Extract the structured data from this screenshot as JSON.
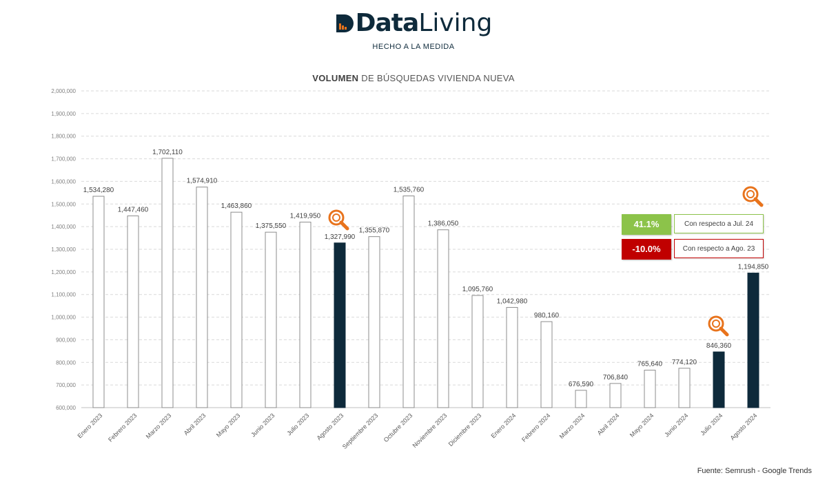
{
  "header": {
    "logo_bold": "Data",
    "logo_light": "Living",
    "tagline": "HECHO A LA MEDIDA"
  },
  "colors": {
    "brand_dark": "#0e2a3b",
    "highlight_bar": "#0e2a3b",
    "accent_orange": "#e8731c",
    "positive": "#8cc34a",
    "negative": "#c00000"
  },
  "chart_data": {
    "type": "bar",
    "title_bold": "VOLUMEN",
    "title_rest": "DE BÚSQUEDAS VIVIENDA NUEVA",
    "xlabel": "",
    "ylabel": "",
    "ylim": [
      600000,
      2000000
    ],
    "y_tick_step": 100000,
    "y_tick_labels": [
      "600,000",
      "700,000",
      "800,000",
      "900,000",
      "1,000,000",
      "1,100,000",
      "1,200,000",
      "1,300,000",
      "1,400,000",
      "1,500,000",
      "1,600,000",
      "1,700,000",
      "1,800,000",
      "1,900,000",
      "2,000,000"
    ],
    "grid": "horizontal-dashed",
    "categories": [
      "Enero 2023",
      "Febrero 2023",
      "Marzo 2023",
      "Abril 2023",
      "Mayo 2023",
      "Junio 2023",
      "Julio 2023",
      "Agosto 2023",
      "Septiembre 2023",
      "Octubre 2023",
      "Noviembre 2023",
      "Diciembre 2023",
      "Enero 2024",
      "Febrero 2024",
      "Marzo 2024",
      "Abril 2024",
      "Mayo 2024",
      "Junio 2024",
      "Julio 2024",
      "Agosto 2024"
    ],
    "values": [
      1534280,
      1447460,
      1702110,
      1574910,
      1463860,
      1375550,
      1419950,
      1327990,
      1355870,
      1535760,
      1386050,
      1095760,
      1042980,
      980160,
      676590,
      706840,
      765640,
      774120,
      846360,
      1194850
    ],
    "value_labels": [
      "1,534,280",
      "1,447,460",
      "1,702,110",
      "1,574,910",
      "1,463,860",
      "1,375,550",
      "1,419,950",
      "1,327,990",
      "1,355,870",
      "1,535,760",
      "1,386,050",
      "1,095,760",
      "1,042,980",
      "980,160",
      "676,590",
      "706,840",
      "765,640",
      "774,120",
      "846,360",
      "1,194,850"
    ],
    "highlighted": [
      "Agosto 2023",
      "Julio 2024",
      "Agosto 2024"
    ]
  },
  "kpis": [
    {
      "value": "41.1%",
      "label": "Con respecto a Jul. 24",
      "color": "#8cc34a",
      "border": "#8cc34a"
    },
    {
      "value": "-10.0%",
      "label": "Con respecto a Ago. 23",
      "color": "#c00000",
      "border": "#c00000"
    }
  ],
  "source": "Fuente: Semrush - Google Trends",
  "icons": [
    "search-magnifier-icon"
  ]
}
